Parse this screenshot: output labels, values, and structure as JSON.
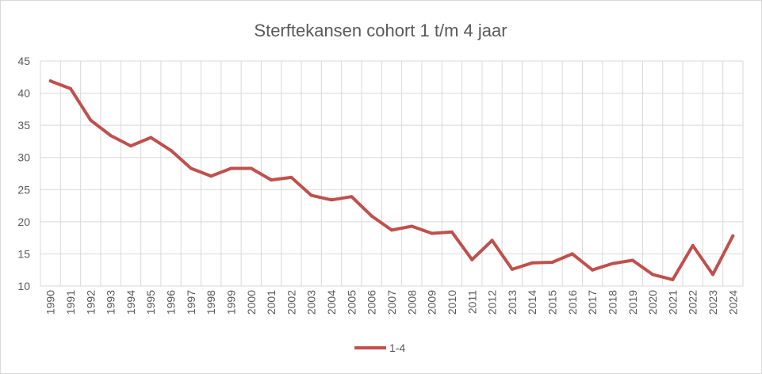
{
  "chart_data": {
    "type": "line",
    "title": "Sterftekansen cohort 1 t/m 4 jaar",
    "xlabel": "",
    "ylabel": "",
    "ylim": [
      10,
      45
    ],
    "yticks": [
      10,
      15,
      20,
      25,
      30,
      35,
      40,
      45
    ],
    "grid": true,
    "legend_position": "bottom",
    "x": [
      "1990",
      "1991",
      "1992",
      "1993",
      "1994",
      "1995",
      "1996",
      "1997",
      "1998",
      "1999",
      "2000",
      "2001",
      "2002",
      "2003",
      "2004",
      "2005",
      "2006",
      "2007",
      "2008",
      "2009",
      "2010",
      "2011",
      "2012",
      "2013",
      "2014",
      "2015",
      "2016",
      "2017",
      "2018",
      "2019",
      "2020",
      "2021",
      "2022",
      "2023",
      "2024"
    ],
    "series": [
      {
        "name": "1-4",
        "color": "#c0504d",
        "values": [
          41.9,
          40.7,
          35.8,
          33.4,
          31.8,
          33.1,
          31.1,
          28.3,
          27.1,
          28.3,
          28.3,
          26.5,
          26.9,
          24.1,
          23.4,
          23.9,
          20.9,
          18.7,
          19.3,
          18.2,
          18.4,
          14.1,
          17.1,
          12.6,
          13.6,
          13.7,
          15.0,
          12.5,
          13.5,
          14.0,
          11.8,
          11.0,
          16.3,
          11.8,
          17.8
        ]
      }
    ]
  }
}
